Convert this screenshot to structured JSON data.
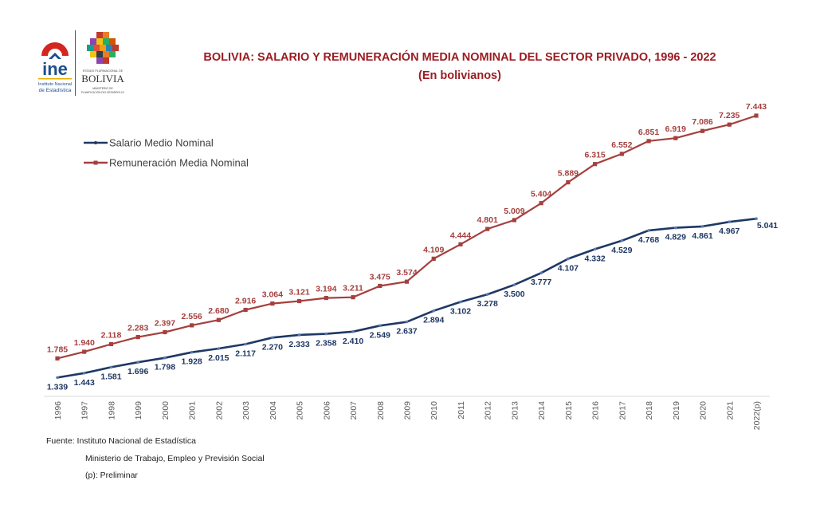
{
  "header": {
    "title": "BOLIVIA: SALARIO Y REMUNERACIÓN MEDIA NOMINAL DEL SECTOR PRIVADO, 1996 - 2022",
    "subtitle": "(En bolivianos)",
    "logos": {
      "ine_name": "ine",
      "ine_line1": "Instituto Nacional",
      "ine_line2": "de Estadística",
      "bolivia_top": "ESTADO PLURINACIONAL DE",
      "bolivia_name": "BOLIVIA",
      "bolivia_bottom1": "MINISTERIO DE",
      "bolivia_bottom2": "PLANIFICACIÓN DEL DESARROLLO"
    }
  },
  "colors": {
    "salario": "#1f3864",
    "remuneracion": "#a5403e",
    "title": "#9b1c22",
    "axis": "#d9d9d9"
  },
  "chart_data": {
    "type": "line",
    "title": "BOLIVIA: SALARIO Y REMUNERACIÓN MEDIA NOMINAL DEL SECTOR PRIVADO, 1996 - 2022",
    "subtitle": "(En bolivianos)",
    "xlabel": "",
    "ylabel": "",
    "grid": false,
    "legend_position": "top-left",
    "ylim": [
      0.9,
      7.6
    ],
    "x": [
      "1996",
      "1997",
      "1998",
      "1999",
      "2000",
      "2001",
      "2002",
      "2003",
      "2004",
      "2005",
      "2006",
      "2007",
      "2008",
      "2009",
      "2010",
      "2011",
      "2012",
      "2013",
      "2014",
      "2015",
      "2016",
      "2017",
      "2018",
      "2019",
      "2020",
      "2021",
      "2022(p)"
    ],
    "series": [
      {
        "name": "Salario Medio Nominal",
        "values": [
          1.339,
          1.443,
          1.581,
          1.696,
          1.798,
          1.928,
          2.015,
          2.117,
          2.27,
          2.333,
          2.358,
          2.41,
          2.549,
          2.637,
          2.894,
          3.102,
          3.278,
          3.5,
          3.777,
          4.107,
          4.332,
          4.529,
          4.768,
          4.829,
          4.861,
          4.967,
          5.041
        ],
        "labels": [
          "1.339",
          "1.443",
          "1.581",
          "1.696",
          "1.798",
          "1.928",
          "2.015",
          "2.117",
          "2.270",
          "2.333",
          "2.358",
          "2.410",
          "2.549",
          "2.637",
          "2.894",
          "3.102",
          "3.278",
          "3.500",
          "3.777",
          "4.107",
          "4.332",
          "4.529",
          "4.768",
          "4.829",
          "4.861",
          "4.967",
          "5.041"
        ]
      },
      {
        "name": "Remuneración Media Nominal",
        "values": [
          1.785,
          1.94,
          2.118,
          2.283,
          2.397,
          2.556,
          2.68,
          2.916,
          3.064,
          3.121,
          3.194,
          3.211,
          3.475,
          3.574,
          4.109,
          4.444,
          4.801,
          5.009,
          5.404,
          5.889,
          6.315,
          6.552,
          6.851,
          6.919,
          7.086,
          7.235,
          7.443
        ],
        "labels": [
          "1.785",
          "1.940",
          "2.118",
          "2.283",
          "2.397",
          "2.556",
          "2.680",
          "2.916",
          "3.064",
          "3.121",
          "3.194",
          "3.211",
          "3.475",
          "3.574",
          "4.109",
          "4.444",
          "4.801",
          "5.009",
          "5.404",
          "5.889",
          "6.315",
          "6.552",
          "6.851",
          "6.919",
          "7.086",
          "7.235",
          "7.443"
        ]
      }
    ]
  },
  "footer": {
    "source": "Fuente: Instituto Nacional de Estadística",
    "source2": "Ministerio de Trabajo, Empleo y Previsión Social",
    "note": "(p): Preliminar"
  }
}
